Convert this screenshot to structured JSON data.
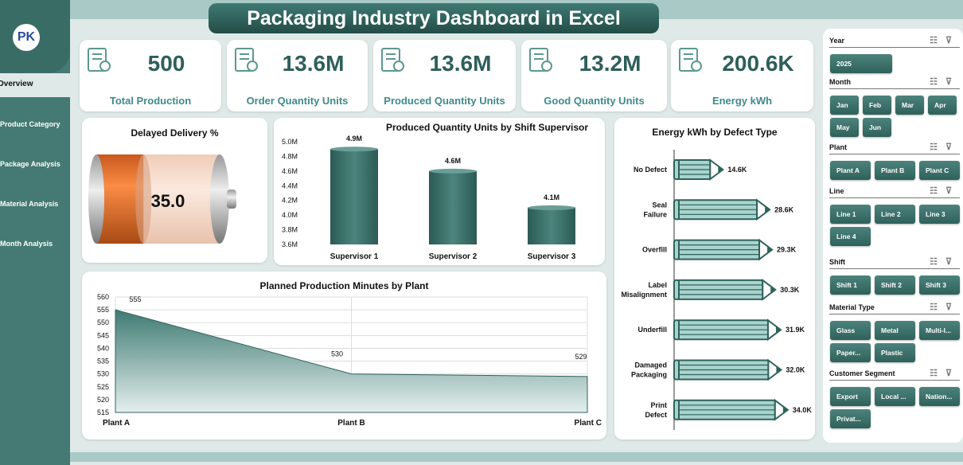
{
  "title": "Packaging Industry Dashboard in Excel",
  "sidebar": {
    "logo": "PK",
    "items": [
      {
        "label": "Overview"
      },
      {
        "label": "Product Category"
      },
      {
        "label": "Package Analysis"
      },
      {
        "label": "Material Analysis"
      },
      {
        "label": "Month Analysis"
      }
    ]
  },
  "kpis": [
    {
      "value": "500",
      "label": "Total Production",
      "icon": "checklist-icon"
    },
    {
      "value": "13.6M",
      "label": "Order Quantity Units",
      "icon": "robot-arm-icon"
    },
    {
      "value": "13.6M",
      "label": "Produced Quantity Units",
      "icon": "network-icon"
    },
    {
      "value": "13.2M",
      "label": "Good Quantity Units",
      "icon": "quality-check-icon"
    },
    {
      "value": "200.6K",
      "label": "Energy kWh",
      "icon": "energy-icon"
    }
  ],
  "delayed": {
    "title": "Delayed Delivery %",
    "value": "35.0",
    "percent": 35,
    "colors": {
      "fill": "#e8752c",
      "empty": "#f6d9c8"
    }
  },
  "chart_data": [
    {
      "type": "bar",
      "title": "Produced Quantity Units by Shift Supervisor",
      "categories": [
        "Supervisor 1",
        "Supervisor 2",
        "Supervisor 3"
      ],
      "values": [
        4.9,
        4.6,
        4.1
      ],
      "data_labels": [
        "4.9M",
        "4.6M",
        "4.1M"
      ],
      "ylim": [
        3.6,
        5.0
      ],
      "ticks": [
        "3.6M",
        "3.8M",
        "4.0M",
        "4.2M",
        "4.4M",
        "4.6M",
        "4.8M",
        "5.0M"
      ],
      "color": "#2f625c"
    },
    {
      "type": "area",
      "title": "Planned Production Minutes by Plant",
      "categories": [
        "Plant A",
        "Plant B",
        "Plant C"
      ],
      "values": [
        555,
        530,
        529
      ],
      "ylim": [
        515,
        560
      ],
      "ticks": [
        "515",
        "520",
        "525",
        "530",
        "535",
        "540",
        "545",
        "550",
        "555",
        "560"
      ],
      "grid": true,
      "color": "#3f7a73"
    },
    {
      "type": "bar",
      "orientation": "horizontal",
      "title": "Energy kWh by Defect Type",
      "categories": [
        "No Defect",
        "Seal Failure",
        "Overfill",
        "Label Misalignment",
        "Underfill",
        "Damaged Packaging",
        "Print Defect"
      ],
      "values": [
        14.6,
        28.6,
        29.3,
        30.3,
        31.9,
        32.0,
        34.0
      ],
      "data_labels": [
        "14.6K",
        "28.6K",
        "29.3K",
        "30.3K",
        "31.9K",
        "32.0K",
        "34.0K"
      ],
      "color": "#a9d3cd"
    }
  ],
  "slicers": [
    {
      "title": "Year",
      "items": [
        "2025"
      ]
    },
    {
      "title": "Month",
      "items": [
        "Jan",
        "Feb",
        "Mar",
        "Apr",
        "May",
        "Jun"
      ]
    },
    {
      "title": "Plant",
      "items": [
        "Plant A",
        "Plant B",
        "Plant C"
      ]
    },
    {
      "title": "Line",
      "items": [
        "Line 1",
        "Line 2",
        "Line 3",
        "Line 4"
      ]
    },
    {
      "title": "Shift",
      "items": [
        "Shift 1",
        "Shift 2",
        "Shift 3"
      ]
    },
    {
      "title": "Material Type",
      "items": [
        "Glass",
        "Metal",
        "Multi-l...",
        "Paper...",
        "Plastic"
      ]
    },
    {
      "title": "Customer Segment",
      "items": [
        "Export",
        "Local ...",
        "Nation...",
        "Privat..."
      ]
    }
  ]
}
